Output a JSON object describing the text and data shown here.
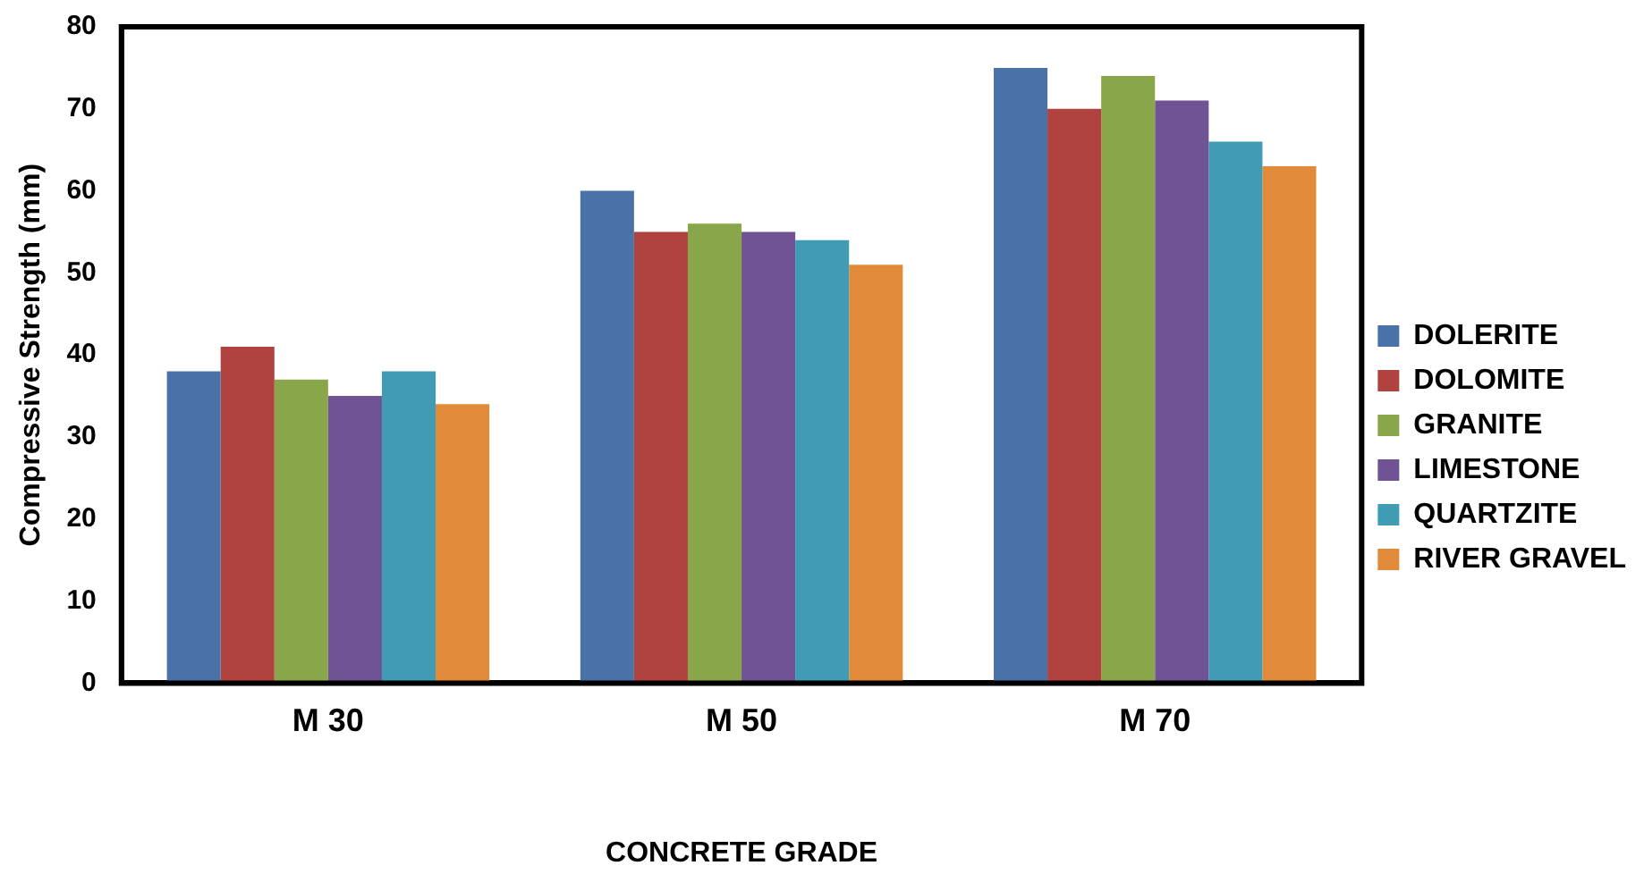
{
  "chart_data": {
    "type": "bar",
    "xlabel": "CONCRETE GRADE",
    "ylabel": "Compressive Strength (mm)",
    "categories": [
      "M 30",
      "M 50",
      "M 70"
    ],
    "series": [
      {
        "name": "DOLERITE",
        "color": "#4a72a8",
        "values": [
          38,
          60,
          75
        ]
      },
      {
        "name": "DOLOMITE",
        "color": "#b0433f",
        "values": [
          41,
          55,
          70
        ]
      },
      {
        "name": "GRANITE",
        "color": "#8aa64a",
        "values": [
          37,
          56,
          74
        ]
      },
      {
        "name": "LIMESTONE",
        "color": "#6f5394",
        "values": [
          35,
          55,
          71
        ]
      },
      {
        "name": "QUARTZITE",
        "color": "#3f9cb3",
        "values": [
          38,
          54,
          66
        ]
      },
      {
        "name": "RIVER GRAVEL",
        "color": "#e08a3a",
        "values": [
          34,
          51,
          63
        ]
      }
    ],
    "ylim": [
      0,
      80
    ],
    "yticks": [
      0,
      10,
      20,
      30,
      40,
      50,
      60,
      70,
      80
    ],
    "grid": false,
    "legend": "right"
  }
}
